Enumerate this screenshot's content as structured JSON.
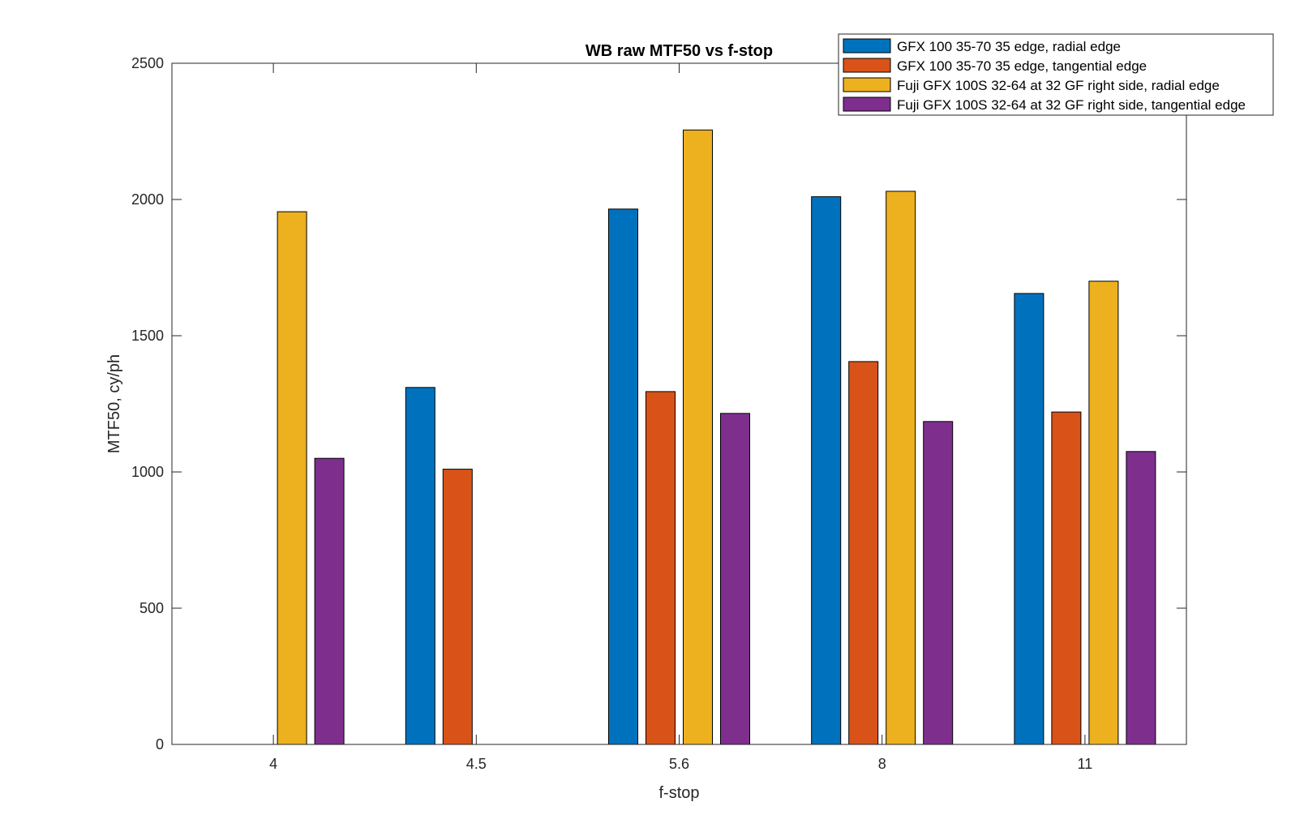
{
  "chart_data": {
    "type": "bar",
    "title": "WB raw MTF50 vs f-stop",
    "xlabel": "f-stop",
    "ylabel": "MTF50, cy/ph",
    "ylim": [
      0,
      2500
    ],
    "yticks": [
      0,
      500,
      1000,
      1500,
      2000,
      2500
    ],
    "categories": [
      "4",
      "4.5",
      "5.6",
      "8",
      "11"
    ],
    "grid": false,
    "legend_position": "top-right",
    "series": [
      {
        "name": "GFX 100 35-70 35 edge, radial edge",
        "color": "#0072BD",
        "values": [
          null,
          1310,
          1965,
          2010,
          1655
        ]
      },
      {
        "name": "GFX 100 35-70 35 edge, tangential edge",
        "color": "#D95319",
        "values": [
          null,
          1010,
          1295,
          1405,
          1220
        ]
      },
      {
        "name": "Fuji GFX 100S 32-64 at 32 GF right side, radial edge",
        "color": "#EDB120",
        "values": [
          1955,
          null,
          2255,
          2030,
          1700
        ]
      },
      {
        "name": "Fuji GFX 100S 32-64 at 32 GF right side, tangential edge",
        "color": "#7E2F8E",
        "values": [
          1050,
          null,
          1215,
          1185,
          1075
        ]
      }
    ]
  }
}
